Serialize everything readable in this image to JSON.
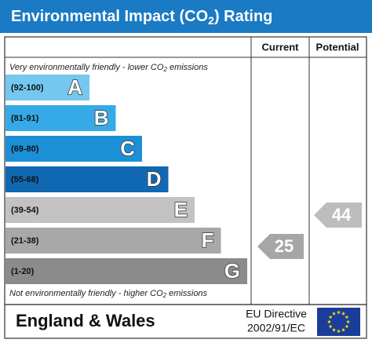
{
  "title": [
    "Environmental Impact (CO",
    "2",
    ") Rating"
  ],
  "headers": {
    "current": "Current",
    "potential": "Potential"
  },
  "top_note": [
    "Very environmentally friendly - lower CO",
    "2",
    " emissions"
  ],
  "bottom_note": [
    "Not environmentally friendly - higher CO",
    "2",
    " emissions"
  ],
  "bands": [
    {
      "range": "(92-100)",
      "letter": "A",
      "color": "#74c7ef"
    },
    {
      "range": "(81-91)",
      "letter": "B",
      "color": "#35aae6"
    },
    {
      "range": "(69-80)",
      "letter": "C",
      "color": "#1b90d7"
    },
    {
      "range": "(55-68)",
      "letter": "D",
      "color": "#1168b2"
    },
    {
      "range": "(39-54)",
      "letter": "E",
      "color": "#c2c2c2"
    },
    {
      "range": "(21-38)",
      "letter": "F",
      "color": "#a8a8a8"
    },
    {
      "range": "(1-20)",
      "letter": "G",
      "color": "#8b8b8b"
    }
  ],
  "current": 25,
  "potential": 44,
  "footer": {
    "region": "England & Wales",
    "directive": [
      "EU Directive",
      "2002/91/EC"
    ]
  }
}
